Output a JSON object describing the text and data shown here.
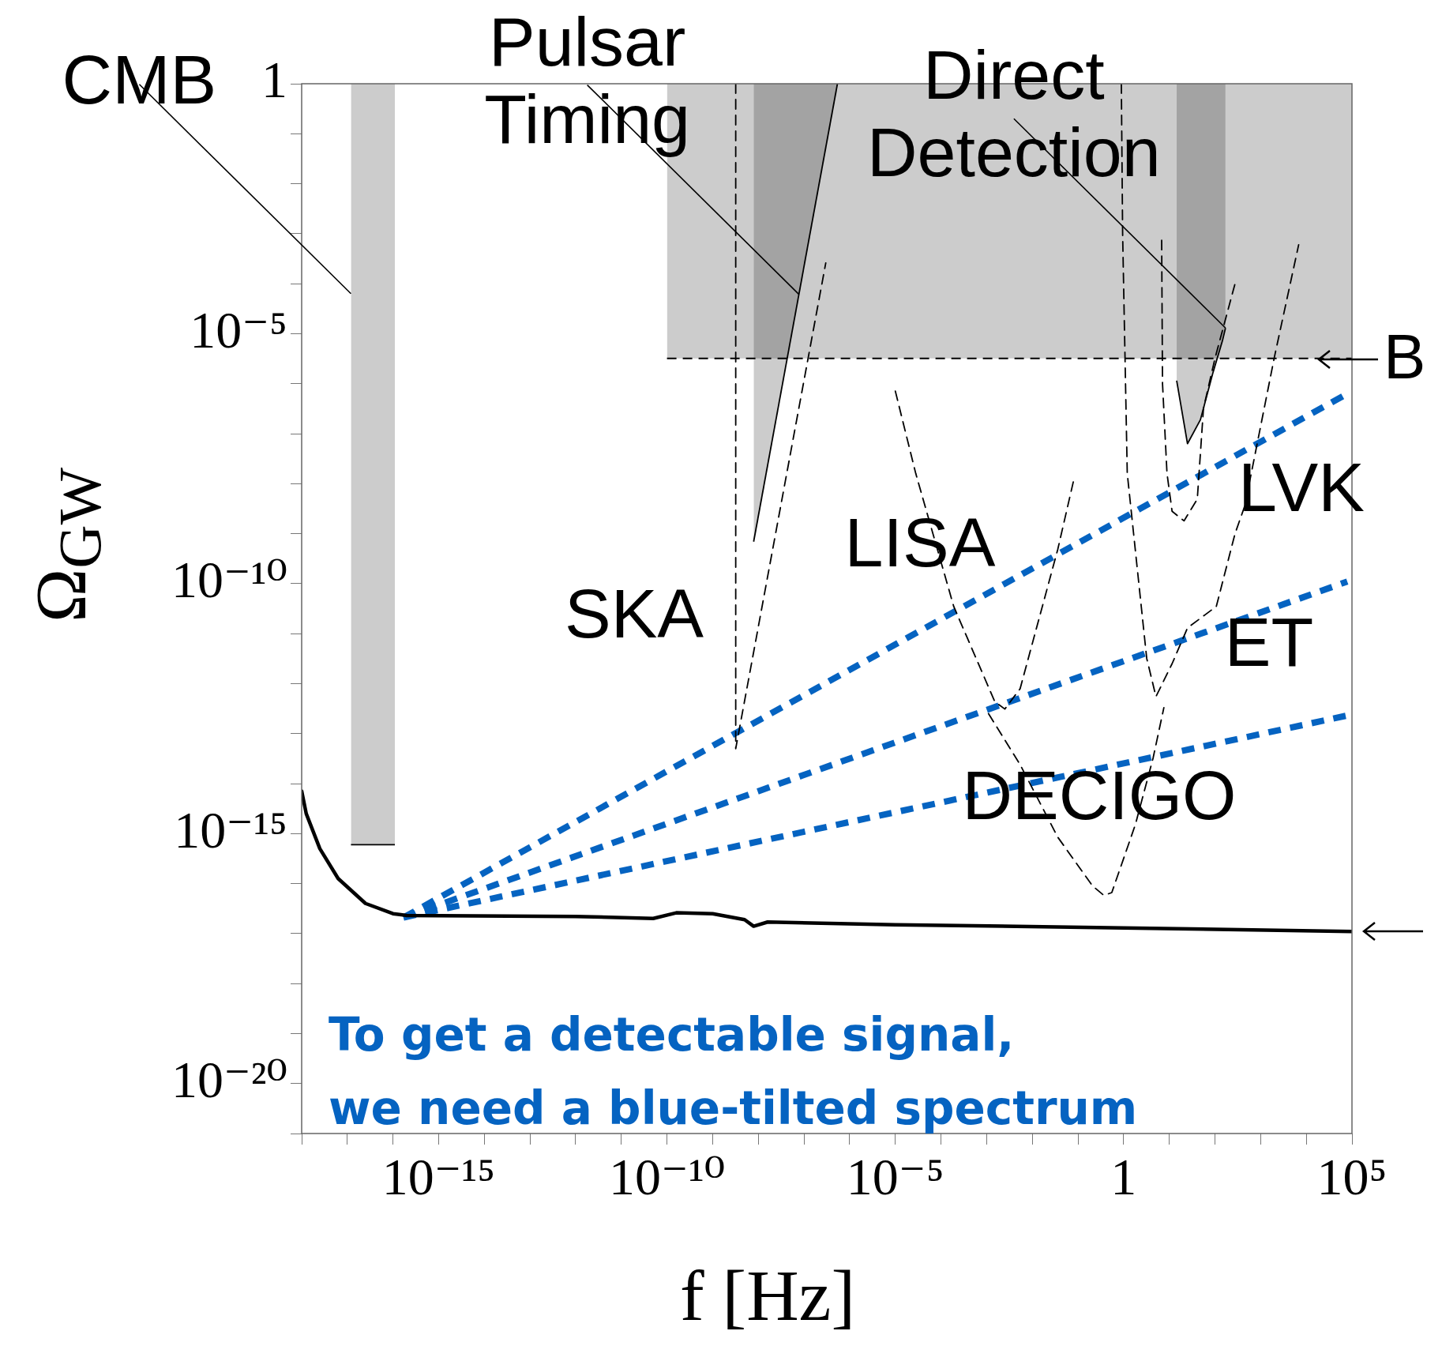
{
  "chart_data": {
    "type": "line",
    "xlabel": "f [Hz]",
    "ylabel": "Ω$_{GW}$",
    "log": "xy",
    "xlim": [
      1e-18,
      100000.0
    ],
    "ylim": [
      1e-21,
      1
    ],
    "xticks": [
      {
        "value": 1e-18,
        "label": null
      },
      {
        "value": 1e-17,
        "label": null
      },
      {
        "value": 1e-16,
        "label": null
      },
      {
        "value": 1e-15,
        "label": "10⁻¹⁵"
      },
      {
        "value": 1e-14,
        "label": null
      },
      {
        "value": 1e-13,
        "label": null
      },
      {
        "value": 1e-12,
        "label": null
      },
      {
        "value": 1e-11,
        "label": null
      },
      {
        "value": 1e-10,
        "label": "10⁻¹⁰"
      },
      {
        "value": 1e-09,
        "label": null
      },
      {
        "value": 1e-08,
        "label": null
      },
      {
        "value": 1e-07,
        "label": null
      },
      {
        "value": 1e-06,
        "label": null
      },
      {
        "value": 1e-05,
        "label": "10⁻⁵"
      },
      {
        "value": 0.0001,
        "label": null
      },
      {
        "value": 0.001,
        "label": null
      },
      {
        "value": 0.01,
        "label": null
      },
      {
        "value": 0.1,
        "label": null
      },
      {
        "value": 1,
        "label": "1"
      },
      {
        "value": 10,
        "label": null
      },
      {
        "value": 100,
        "label": null
      },
      {
        "value": 1000,
        "label": null
      },
      {
        "value": 10000.0,
        "label": null
      },
      {
        "value": 100000.0,
        "label": "10⁵"
      }
    ],
    "yticks": [
      {
        "value": 1e-21,
        "label": null
      },
      {
        "value": 1e-20,
        "label": "10⁻²⁰"
      },
      {
        "value": 1e-19,
        "label": null
      },
      {
        "value": 1e-18,
        "label": null
      },
      {
        "value": 1e-17,
        "label": null
      },
      {
        "value": 1e-16,
        "label": null
      },
      {
        "value": 1e-15,
        "label": "10⁻¹⁵"
      },
      {
        "value": 1e-14,
        "label": null
      },
      {
        "value": 1e-13,
        "label": null
      },
      {
        "value": 1e-12,
        "label": null
      },
      {
        "value": 1e-11,
        "label": null
      },
      {
        "value": 1e-10,
        "label": "10⁻¹⁰"
      },
      {
        "value": 1e-09,
        "label": null
      },
      {
        "value": 1e-08,
        "label": null
      },
      {
        "value": 1e-07,
        "label": null
      },
      {
        "value": 1e-06,
        "label": null
      },
      {
        "value": 1e-05,
        "label": "10⁻⁵"
      },
      {
        "value": 0.0001,
        "label": null
      },
      {
        "value": 0.001,
        "label": null
      },
      {
        "value": 0.01,
        "label": null
      },
      {
        "value": 0.1,
        "label": null
      },
      {
        "value": 1,
        "label": "1"
      }
    ],
    "series": [
      {
        "color": "#000000",
        "line_style": "solid",
        "x": [
          1e-18,
          1.26e-18,
          2.5e-18,
          6.3e-18,
          2.5e-17,
          1e-16,
          2e-16,
          1e-12,
          5e-11,
          1.6e-10,
          1e-09,
          5e-09,
          7.9e-09,
          1.6e-08,
          1e-05,
          1,
          100000.0
        ],
        "values": [
          7.1e-15,
          2.5e-15,
          5e-16,
          1.26e-16,
          4e-17,
          2.5e-17,
          2.3e-17,
          2.2e-17,
          2e-17,
          2.6e-17,
          2.5e-17,
          1.9e-17,
          1.4e-17,
          1.7e-17,
          1.5e-17,
          1.3e-17,
          1.1e-17
        ]
      },
      {
        "type": "area",
        "name": "CMB",
        "color": "#cccccc",
        "line_style": "solid",
        "x": [
          1.2e-17,
          1.2e-17,
          1.1e-16,
          1.1e-16
        ],
        "values": [
          1,
          6e-16,
          6e-16,
          1
        ]
      },
      {
        "type": "area",
        "color": "#cccccc",
        "line_style": "dashed",
        "x": [
          1e-10,
          1e-10,
          100000.0,
          100000.0
        ],
        "values": [
          1,
          3.2e-06,
          3.2e-06,
          1
        ]
      },
      {
        "type": "area",
        "name": "Pulsar\nTiming",
        "color": "#cccccc",
        "line_style": "solid",
        "x": [
          7.9e-09,
          7.9e-09,
          5.4e-07
        ],
        "values": [
          1,
          6.9e-10,
          1
        ]
      },
      {
        "type": "area",
        "name": "Direct\nDetection",
        "color": "#cccccc",
        "line_style": "solid",
        "x": [
          14.5,
          14.5,
          25,
          48,
          91,
          145,
          170,
          170
        ],
        "values": [
          1,
          1.15e-06,
          6.3e-08,
          1.9e-07,
          1.7e-06,
          7.1e-06,
          1.3e-05,
          1
        ]
      },
      {
        "color": "#000000",
        "line_style": "dashed",
        "x": [
          3.2e-09,
          3.2e-09,
          3e-07
        ],
        "values": [
          1,
          5e-14,
          0.00026
        ]
      },
      {
        "color": "#000000",
        "line_style": "dashed",
        "x": [
          1e-05,
          2.8e-05,
          0.00019,
          0.0015,
          0.0025,
          0.0054,
          0.036,
          0.081
        ],
        "values": [
          7.1e-07,
          1.6e-08,
          3.5e-11,
          4.4e-13,
          3.1e-13,
          7.9e-13,
          4.8e-10,
          1.2e-08
        ]
      },
      {
        "color": "#000000",
        "line_style": "dashed",
        "x": [
          0.0011,
          0.0054,
          0.036,
          0.21,
          0.37,
          0.55,
          1.8,
          4.4,
          7.6
        ],
        "values": [
          2.5e-13,
          2.4e-14,
          8.5e-16,
          8.9e-17,
          5.8e-17,
          6.6e-17,
          1.5e-15,
          3.2e-14,
          3.3e-13
        ]
      },
      {
        "color": "#000000",
        "line_style": "dashed",
        "x": [
          0.89,
          0.95,
          1.2,
          3.2,
          5.1,
          11.5,
          25,
          107,
          275,
          450,
          2000,
          6800
        ],
        "values": [
          1,
          0.001,
          1.6e-08,
          3.2e-12,
          5.5e-13,
          2.5e-12,
          1.3e-11,
          3.5e-11,
          1e-09,
          3.6e-09,
          3.4e-06,
          0.0006
        ]
      },
      {
        "color": "#000000",
        "line_style": "dashed",
        "x": [
          6.8,
          7.1,
          8.9,
          11.5,
          21,
          41,
          56,
          100,
          275
        ],
        "values": [
          0.00074,
          1e-06,
          1.6e-08,
          2.8e-09,
          1.8e-09,
          4.9e-09,
          3.2e-07,
          3.2e-06,
          0.0001
        ]
      },
      {
        "color": "#0563c1",
        "line_style": "dotted",
        "x": [
          1.7e-16,
          79000.0
        ],
        "values": [
          2.1e-17,
          6.3e-07
        ]
      },
      {
        "color": "#0563c1",
        "line_style": "dotted",
        "x": [
          1.7e-16,
          79000.0
        ],
        "values": [
          2.1e-17,
          1.1e-10
        ]
      },
      {
        "color": "#0563c1",
        "line_style": "dotted",
        "x": [
          1.7e-16,
          79000.0
        ],
        "values": [
          2.1e-17,
          2.3e-13
        ]
      }
    ],
    "annotations": [
      "SKA",
      "LISA",
      "LVK",
      "ET",
      "DECIGO",
      "B",
      "To get a detectable signal,",
      "we need a blue-tilted spectrum"
    ]
  }
}
